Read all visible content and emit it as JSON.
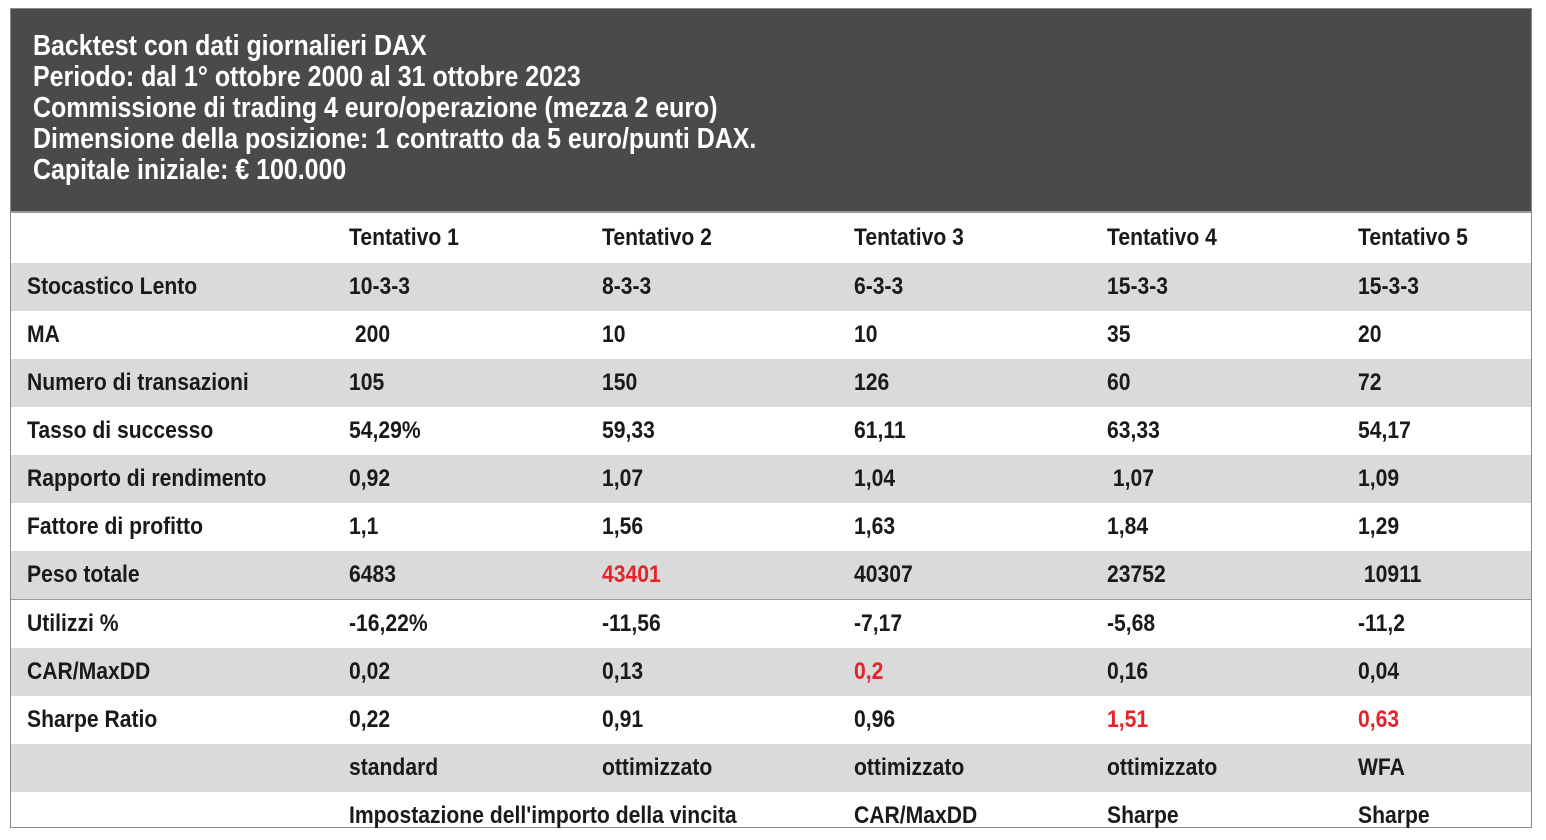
{
  "header": {
    "lines": [
      "Backtest con dati giornalieri DAX",
      "Periodo: dal 1° ottobre 2000 al 31 ottobre 2023",
      "Commissione di trading 4 euro/operazione (mezza 2 euro)",
      "Dimensione della posizione: 1 contratto da 5 euro/punti DAX.",
      "Capitale iniziale: € 100.000"
    ]
  },
  "table": {
    "columns": [
      "",
      "Tentativo 1",
      "Tentativo 2",
      "Tentativo 3",
      "Tentativo 4",
      "Tentativo 5"
    ],
    "rows": [
      {
        "label": "Stocastico Lento",
        "values": [
          "10-3-3",
          "8-3-3",
          "6-3-3",
          "15-3-3",
          "15-3-3"
        ]
      },
      {
        "label": "MA",
        "values": [
          " 200",
          "10",
          "10",
          "35",
          "20"
        ]
      },
      {
        "label": "Numero di transazioni",
        "values": [
          "105",
          "150",
          "126",
          "60",
          "72"
        ]
      },
      {
        "label": "Tasso di successo",
        "values": [
          "54,29%",
          "59,33",
          "61,11",
          "63,33",
          "54,17"
        ]
      },
      {
        "label": "Rapporto di rendimento",
        "values": [
          "0,92",
          "1,07",
          "1,04",
          " 1,07",
          "1,09"
        ]
      },
      {
        "label": "Fattore di profitto",
        "values": [
          "1,1",
          "1,56",
          "1,63",
          "1,84",
          "1,29"
        ]
      },
      {
        "label": "Peso totale",
        "values": [
          "6483",
          "43401",
          "40307",
          "23752",
          " 10911"
        ]
      },
      {
        "label": "Utilizzi %",
        "values": [
          "-16,22%",
          "-11,56",
          "-7,17",
          "-5,68",
          "-11,2"
        ]
      },
      {
        "label": "CAR/MaxDD",
        "values": [
          "0,02",
          "0,13",
          "0,2",
          "0,16",
          "0,04"
        ]
      },
      {
        "label": "Sharpe Ratio",
        "values": [
          "0,22",
          "0,91",
          "0,96",
          "1,51",
          "0,63"
        ]
      },
      {
        "label": "",
        "values": [
          "standard",
          "ottimizzato",
          "ottimizzato",
          "ottimizzato",
          "WFA"
        ]
      },
      {
        "label": "",
        "values": [
          "Impostazione dell'importo della vincita",
          "",
          "CAR/MaxDD",
          "Sharpe",
          "Sharpe"
        ]
      }
    ],
    "highlight_color": "#e3242b"
  }
}
